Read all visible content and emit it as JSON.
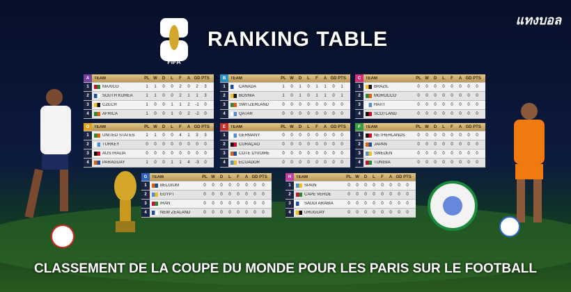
{
  "brand": "แทงบอล",
  "logo_label": "FIFA",
  "title": "RANKING TABLE",
  "columns": [
    "TEAM",
    "PL",
    "W",
    "D",
    "L",
    "F",
    "A",
    "GD",
    "PTS"
  ],
  "groups": [
    {
      "letter": "A",
      "rows": [
        {
          "rank": 1,
          "team": "MAXICO",
          "stats": [
            1,
            1,
            0,
            0,
            2,
            0,
            2,
            3
          ]
        },
        {
          "rank": 2,
          "team": "SOUTH KOREA",
          "stats": [
            1,
            1,
            0,
            0,
            2,
            1,
            1,
            3
          ]
        },
        {
          "rank": 3,
          "team": "CZECH",
          "stats": [
            1,
            0,
            0,
            1,
            1,
            2,
            -1,
            0
          ]
        },
        {
          "rank": 4,
          "team": "AFRICA",
          "stats": [
            1,
            0,
            0,
            1,
            0,
            2,
            -2,
            0
          ]
        }
      ]
    },
    {
      "letter": "B",
      "rows": [
        {
          "rank": 1,
          "team": "CANADA",
          "stats": [
            1,
            0,
            1,
            0,
            1,
            1,
            0,
            1
          ]
        },
        {
          "rank": 2,
          "team": "BOSNIA",
          "stats": [
            1,
            0,
            1,
            0,
            1,
            1,
            0,
            1
          ]
        },
        {
          "rank": 3,
          "team": "SWITZERLAND",
          "stats": [
            0,
            0,
            0,
            0,
            0,
            0,
            0,
            0
          ]
        },
        {
          "rank": 4,
          "team": "QATAR",
          "stats": [
            0,
            0,
            0,
            0,
            0,
            0,
            0,
            0
          ]
        }
      ]
    },
    {
      "letter": "C",
      "rows": [
        {
          "rank": 1,
          "team": "BRAZIL",
          "stats": [
            0,
            0,
            0,
            0,
            0,
            0,
            0,
            0
          ]
        },
        {
          "rank": 2,
          "team": "MOROCCO",
          "stats": [
            0,
            0,
            0,
            0,
            0,
            0,
            0,
            0
          ]
        },
        {
          "rank": 3,
          "team": "HAITI",
          "stats": [
            0,
            0,
            0,
            0,
            0,
            0,
            0,
            0
          ]
        },
        {
          "rank": 4,
          "team": "SCOTLAND",
          "stats": [
            0,
            0,
            0,
            0,
            0,
            0,
            0,
            0
          ]
        }
      ]
    },
    {
      "letter": "D",
      "rows": [
        {
          "rank": 1,
          "team": "UNITED STATES",
          "stats": [
            1,
            1,
            0,
            0,
            4,
            1,
            3,
            3
          ]
        },
        {
          "rank": 2,
          "team": "TURKEY",
          "stats": [
            0,
            0,
            0,
            0,
            0,
            0,
            0,
            0
          ]
        },
        {
          "rank": 3,
          "team": "AUSTRALIA",
          "stats": [
            0,
            0,
            0,
            0,
            0,
            0,
            0,
            0
          ]
        },
        {
          "rank": 4,
          "team": "PARAGUAY",
          "stats": [
            1,
            0,
            0,
            1,
            1,
            4,
            -3,
            0
          ]
        }
      ]
    },
    {
      "letter": "E",
      "rows": [
        {
          "rank": 1,
          "team": "GERMANY",
          "stats": [
            0,
            0,
            0,
            0,
            0,
            0,
            0,
            0
          ]
        },
        {
          "rank": 2,
          "team": "CURAÇAO",
          "stats": [
            0,
            0,
            0,
            0,
            0,
            0,
            0,
            0
          ]
        },
        {
          "rank": 3,
          "team": "CÔTE D'IVOIRE",
          "stats": [
            0,
            0,
            0,
            0,
            0,
            0,
            0,
            0
          ]
        },
        {
          "rank": 4,
          "team": "ECUADOR",
          "stats": [
            0,
            0,
            0,
            0,
            0,
            0,
            0,
            0
          ]
        }
      ]
    },
    {
      "letter": "F",
      "rows": [
        {
          "rank": 1,
          "team": "NETHERLANDS",
          "stats": [
            0,
            0,
            0,
            0,
            0,
            0,
            0,
            0
          ]
        },
        {
          "rank": 2,
          "team": "JAPAN",
          "stats": [
            0,
            0,
            0,
            0,
            0,
            0,
            0,
            0
          ]
        },
        {
          "rank": 3,
          "team": "SWEDEN",
          "stats": [
            0,
            0,
            0,
            0,
            0,
            0,
            0,
            0
          ]
        },
        {
          "rank": 4,
          "team": "TUNISIA",
          "stats": [
            0,
            0,
            0,
            0,
            0,
            0,
            0,
            0
          ]
        }
      ]
    },
    {
      "letter": "G",
      "rows": [
        {
          "rank": 1,
          "team": "BELGIUM",
          "stats": [
            0,
            0,
            0,
            0,
            0,
            0,
            0,
            0
          ]
        },
        {
          "rank": 2,
          "team": "EGYPT",
          "stats": [
            0,
            0,
            0,
            0,
            0,
            0,
            0,
            0
          ]
        },
        {
          "rank": 3,
          "team": "IRAN",
          "stats": [
            0,
            0,
            0,
            0,
            0,
            0,
            0,
            0
          ]
        },
        {
          "rank": 4,
          "team": "NEW ZEALAND",
          "stats": [
            0,
            0,
            0,
            0,
            0,
            0,
            0,
            0
          ]
        }
      ]
    },
    {
      "letter": "H",
      "rows": [
        {
          "rank": 1,
          "team": "SPAIN",
          "stats": [
            0,
            0,
            0,
            0,
            0,
            0,
            0,
            0
          ]
        },
        {
          "rank": 2,
          "team": "CAPE VERDE",
          "stats": [
            0,
            0,
            0,
            0,
            0,
            0,
            0,
            0
          ]
        },
        {
          "rank": 3,
          "team": "SAUDI ARABIA",
          "stats": [
            0,
            0,
            0,
            0,
            0,
            0,
            0,
            0
          ]
        },
        {
          "rank": 4,
          "team": "URUGUAY",
          "stats": [
            0,
            0,
            0,
            0,
            0,
            0,
            0,
            0
          ]
        }
      ]
    }
  ],
  "footer": "CLASSEMENT DE LA COUPE DU MONDE POUR LES PARIS SUR LE FOOTBALL"
}
